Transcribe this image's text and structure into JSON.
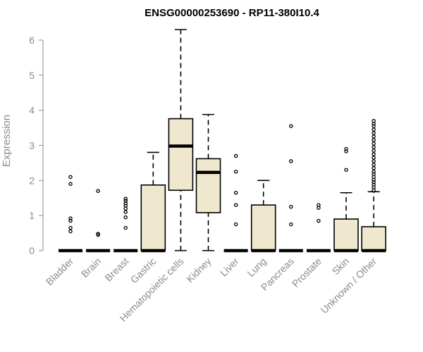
{
  "chart_data": {
    "type": "box",
    "title": "ENSG00000253690 - RP11-380I10.4",
    "ylabel": "Expression",
    "xlabel": "",
    "ylim": [
      0,
      6.3
    ],
    "yticks": [
      0,
      1,
      2,
      3,
      4,
      5,
      6
    ],
    "box_fill": "#efe8cf",
    "categories": [
      "Bladder",
      "Brain",
      "Breast",
      "Gastric",
      "Hematopoietic cells",
      "Kidney",
      "Liver",
      "Lung",
      "Pancreas",
      "Prostate",
      "Skin",
      "Unknown / Other"
    ],
    "boxes": [
      {
        "min": 0,
        "q1": 0,
        "median": 0,
        "q3": 0,
        "max": 0,
        "outliers": [
          0.55,
          0.65,
          0.85,
          0.92,
          1.9,
          2.1
        ]
      },
      {
        "min": 0,
        "q1": 0,
        "median": 0,
        "q3": 0,
        "max": 0,
        "outliers": [
          0.45,
          0.48,
          1.7
        ]
      },
      {
        "min": 0,
        "q1": 0,
        "median": 0,
        "q3": 0,
        "max": 0,
        "outliers": [
          0.65,
          0.95,
          1.1,
          1.2,
          1.28,
          1.35,
          1.42,
          1.48
        ]
      },
      {
        "min": 0,
        "q1": 0,
        "median": 0,
        "q3": 1.87,
        "max": 2.8,
        "outliers": []
      },
      {
        "min": 0,
        "q1": 1.72,
        "median": 2.98,
        "q3": 3.76,
        "max": 6.3,
        "outliers": []
      },
      {
        "min": 0,
        "q1": 1.08,
        "median": 2.23,
        "q3": 2.62,
        "max": 3.88,
        "outliers": []
      },
      {
        "min": 0,
        "q1": 0,
        "median": 0,
        "q3": 0,
        "max": 0,
        "outliers": [
          0.75,
          1.3,
          1.65,
          2.25,
          2.7
        ]
      },
      {
        "min": 0,
        "q1": 0,
        "median": 0,
        "q3": 1.3,
        "max": 2.0,
        "outliers": []
      },
      {
        "min": 0,
        "q1": 0,
        "median": 0,
        "q3": 0,
        "max": 0,
        "outliers": [
          0.75,
          1.25,
          2.55,
          3.55
        ]
      },
      {
        "min": 0,
        "q1": 0,
        "median": 0,
        "q3": 0,
        "max": 0,
        "outliers": [
          0.85,
          1.22,
          1.3
        ]
      },
      {
        "min": 0,
        "q1": 0,
        "median": 0,
        "q3": 0.9,
        "max": 1.65,
        "outliers": [
          2.3,
          2.83,
          2.9
        ]
      },
      {
        "min": 0,
        "q1": 0,
        "median": 0,
        "q3": 0.68,
        "max": 1.68,
        "outliers": [
          1.72,
          1.8,
          1.88,
          1.95,
          2.02,
          2.1,
          2.18,
          2.25,
          2.35,
          2.45,
          2.55,
          2.65,
          2.75,
          2.85,
          2.95,
          3.05,
          3.15,
          3.25,
          3.35,
          3.45,
          3.55,
          3.62,
          3.7
        ]
      }
    ]
  }
}
